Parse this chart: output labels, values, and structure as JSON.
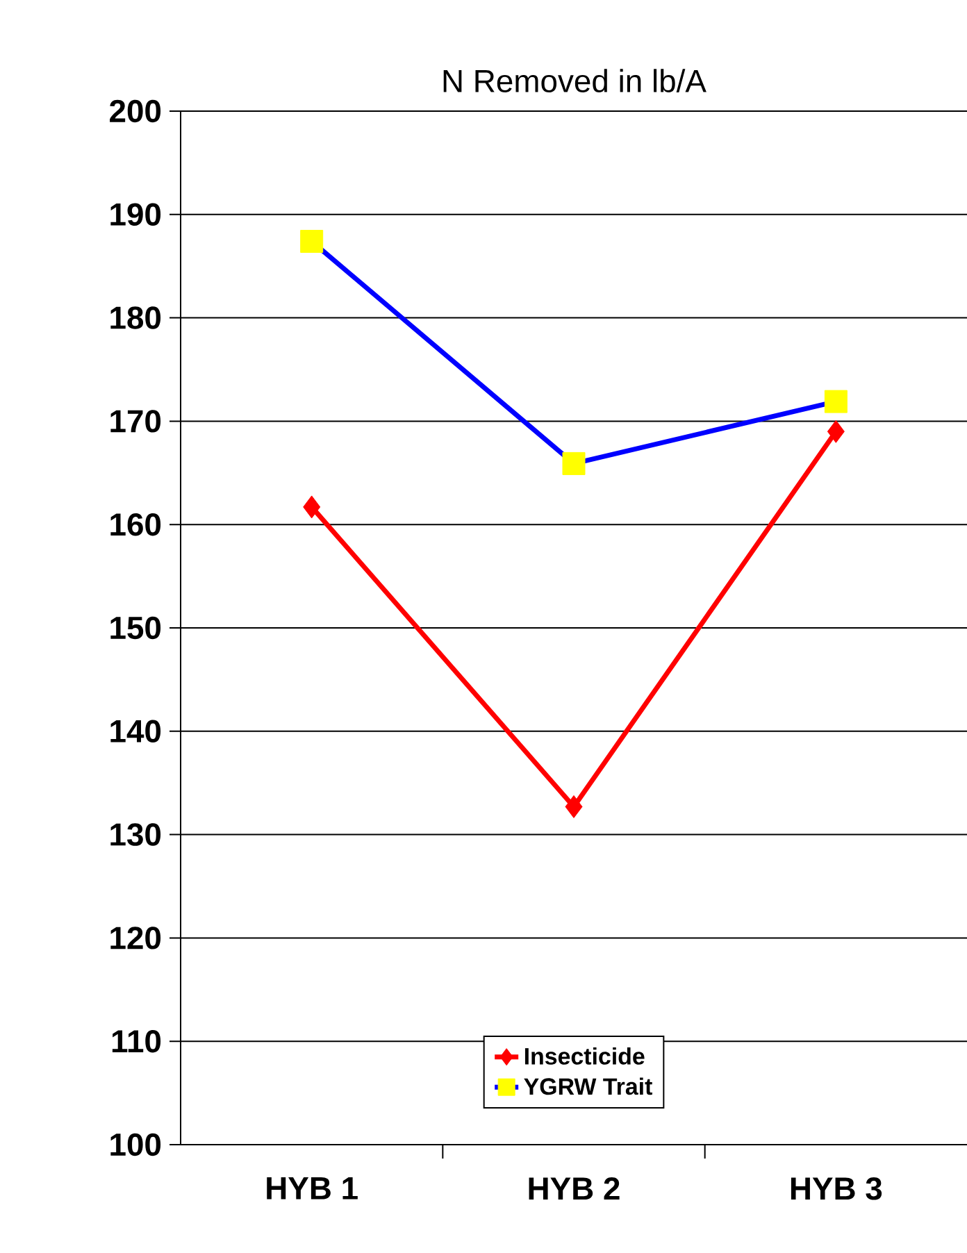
{
  "chart_data": {
    "type": "line",
    "title": "N Removed in lb/A",
    "categories": [
      "HYB 1",
      "HYB 2",
      "HYB 3"
    ],
    "series": [
      {
        "name": "Insecticide",
        "color": "#ff0000",
        "colors": [
          "#ff0000",
          "#ff0000",
          "#ff0000"
        ],
        "marker": "diamond",
        "values": [
          161.7,
          132.7,
          169
        ]
      },
      {
        "name": "YGRW Trait",
        "color": "#0000ff",
        "colors": [
          "#ffff00",
          "#ffff00",
          "#ffff00"
        ],
        "marker": "square",
        "values": [
          187.4,
          165.9,
          171.9
        ]
      }
    ],
    "ylim": [
      100,
      200
    ],
    "yticks": [
      100,
      110,
      120,
      130,
      140,
      150,
      160,
      170,
      180,
      190,
      200
    ],
    "grid": "y",
    "legend": "bottom",
    "line_style": "solid"
  }
}
